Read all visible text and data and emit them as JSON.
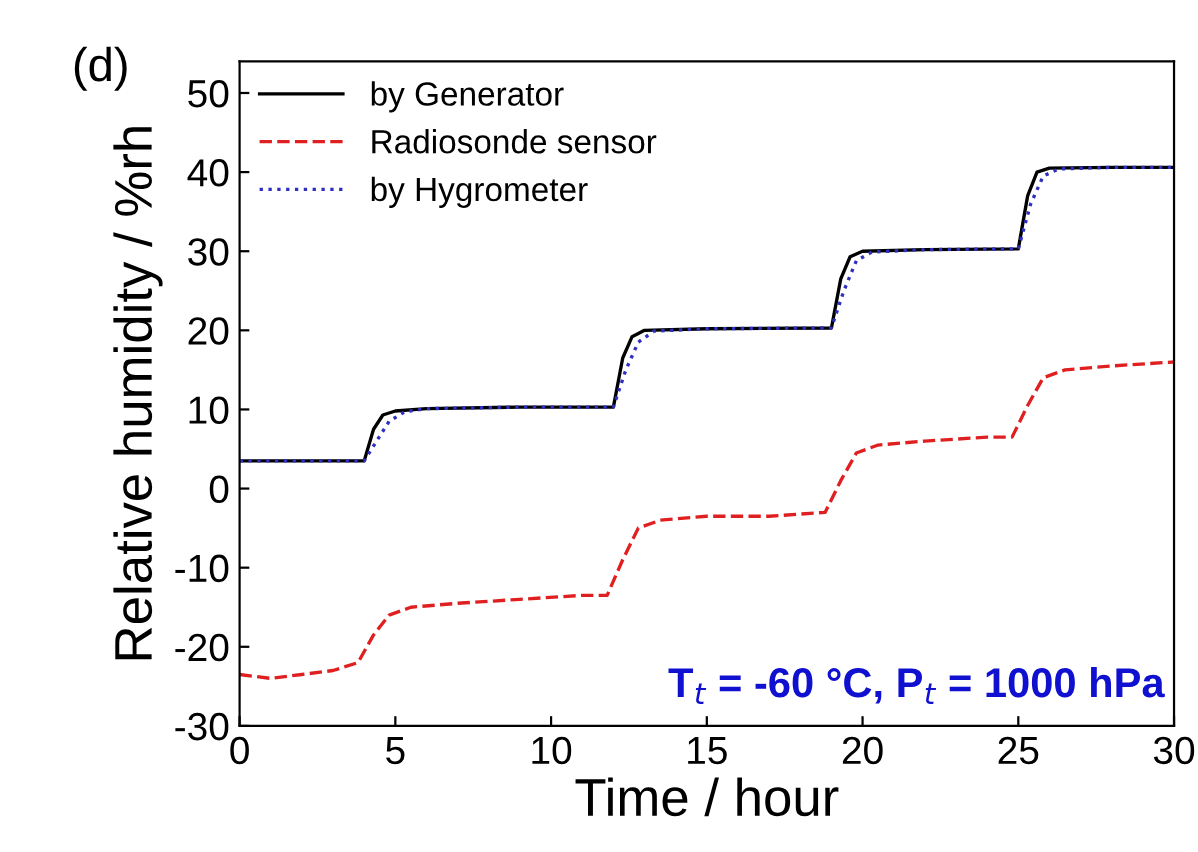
{
  "chart_data": {
    "type": "line",
    "title": "(d)",
    "xlabel": "Time / hour",
    "ylabel": "Relative humidity / %rh",
    "xlim": [
      0,
      30
    ],
    "xticks": [
      0,
      5,
      10,
      15,
      20,
      25,
      30
    ],
    "ylim": [
      -30,
      54
    ],
    "yticks": [
      -30,
      -20,
      -10,
      0,
      10,
      20,
      30,
      40,
      50
    ],
    "grid": false,
    "legend": "top left",
    "marker": "none",
    "annotations": [
      "T$_{t}$ = -60 °C, P$_{t}$ = 1000 hPa"
    ],
    "series": [
      {
        "name": "by Generator",
        "color": "#000000",
        "line_style": "solid",
        "x": [
          0,
          4,
          4.3,
          4.6,
          5,
          6,
          9,
          12,
          12.3,
          12.6,
          13,
          15,
          19,
          19.3,
          19.6,
          20,
          22,
          25,
          25.3,
          25.6,
          26,
          28,
          30
        ],
        "values": [
          3.5,
          3.5,
          7.5,
          9.3,
          9.8,
          10.1,
          10.3,
          10.3,
          16.5,
          19.2,
          20,
          20.2,
          20.3,
          26.5,
          29.3,
          30,
          30.2,
          30.3,
          37,
          40,
          40.5,
          40.6,
          40.6
        ]
      },
      {
        "name": "Radiosonde sensor",
        "color": "#e02020",
        "line_style": "dashed",
        "x": [
          0,
          1,
          2,
          3,
          3.8,
          4.3,
          4.8,
          5.5,
          7,
          9,
          11,
          11.8,
          12.3,
          12.8,
          13.5,
          15,
          17,
          18.8,
          19.3,
          19.8,
          20.5,
          22,
          24,
          24.8,
          25.3,
          25.8,
          26.5,
          28,
          30
        ],
        "values": [
          -23.5,
          -24,
          -23.5,
          -23,
          -22,
          -18.5,
          -16,
          -15,
          -14.5,
          -14,
          -13.5,
          -13.5,
          -9,
          -5,
          -4,
          -3.5,
          -3.5,
          -3,
          1,
          4.5,
          5.5,
          6,
          6.5,
          6.5,
          10.5,
          14,
          15,
          15.5,
          16
        ]
      },
      {
        "name": "by Hygrometer",
        "color": "#3030c0",
        "line_style": "dotted",
        "x": [
          0,
          4,
          4.4,
          4.8,
          5.3,
          6,
          9,
          12,
          12.4,
          12.8,
          13.3,
          15,
          19,
          19.4,
          19.8,
          20.3,
          22,
          25,
          25.4,
          25.8,
          26.3,
          28,
          30
        ],
        "values": [
          3.5,
          3.5,
          6,
          8.5,
          9.7,
          10.1,
          10.3,
          10.3,
          15,
          18.5,
          19.9,
          20.2,
          20.3,
          25,
          28.8,
          29.9,
          30.2,
          30.3,
          36,
          39.5,
          40.4,
          40.6,
          40.6
        ]
      }
    ]
  }
}
